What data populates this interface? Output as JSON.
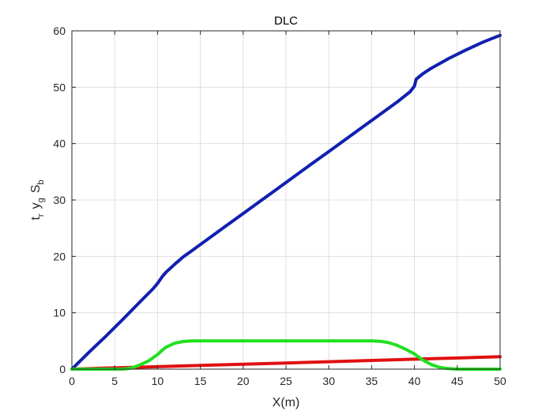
{
  "chart_data": {
    "type": "line",
    "title": "DLC",
    "xlabel": "X(m)",
    "ylabel_parts": [
      {
        "base": "t",
        "sub": "r"
      },
      {
        "base": "y",
        "sub": "g"
      },
      {
        "base": "S",
        "sub": "b"
      }
    ],
    "xlim": [
      0,
      50
    ],
    "ylim": [
      0,
      60
    ],
    "xticks": [
      0,
      5,
      10,
      15,
      20,
      25,
      30,
      35,
      40,
      45,
      50
    ],
    "yticks": [
      0,
      10,
      20,
      30,
      40,
      50,
      60
    ],
    "grid": true,
    "legend": "none",
    "series": [
      {
        "color": "#1020b0",
        "x": [
          0,
          2,
          4,
          6,
          8,
          9.5,
          10,
          10.5,
          11,
          12,
          13,
          14,
          16,
          18,
          20,
          22,
          24,
          26,
          28,
          30,
          32,
          34,
          36,
          38,
          39.5,
          40,
          40.2,
          40.5,
          41,
          42,
          44,
          46,
          48,
          50
        ],
        "y": [
          0,
          3.0,
          5.9,
          8.9,
          12.0,
          14.3,
          15.2,
          16.3,
          17.2,
          18.6,
          19.9,
          21.0,
          23.2,
          25.4,
          27.6,
          29.8,
          32.0,
          34.2,
          36.4,
          38.6,
          40.8,
          43.0,
          45.2,
          47.4,
          49.2,
          50.2,
          51.4,
          51.8,
          52.4,
          53.4,
          55.1,
          56.6,
          58.0,
          59.2
        ]
      },
      {
        "color": "#e01010",
        "x": [
          0,
          5,
          10,
          15,
          20,
          25,
          30,
          35,
          40,
          45,
          50
        ],
        "y": [
          0,
          0.22,
          0.44,
          0.66,
          0.88,
          1.1,
          1.32,
          1.54,
          1.76,
          1.98,
          2.2
        ]
      },
      {
        "color": "#20e020",
        "x": [
          0,
          5,
          6,
          7,
          8,
          9,
          10,
          10.5,
          11,
          12,
          13,
          14,
          15,
          20,
          25,
          30,
          35,
          36,
          37,
          38,
          39,
          40,
          41,
          42,
          43,
          44,
          45,
          50
        ],
        "y": [
          0,
          0,
          0.02,
          0.2,
          0.8,
          1.5,
          2.6,
          3.3,
          3.9,
          4.6,
          4.9,
          5.0,
          5.0,
          5.0,
          5.0,
          5.0,
          5.0,
          4.95,
          4.7,
          4.2,
          3.5,
          2.7,
          1.6,
          0.8,
          0.3,
          0.1,
          0,
          0
        ]
      }
    ]
  }
}
